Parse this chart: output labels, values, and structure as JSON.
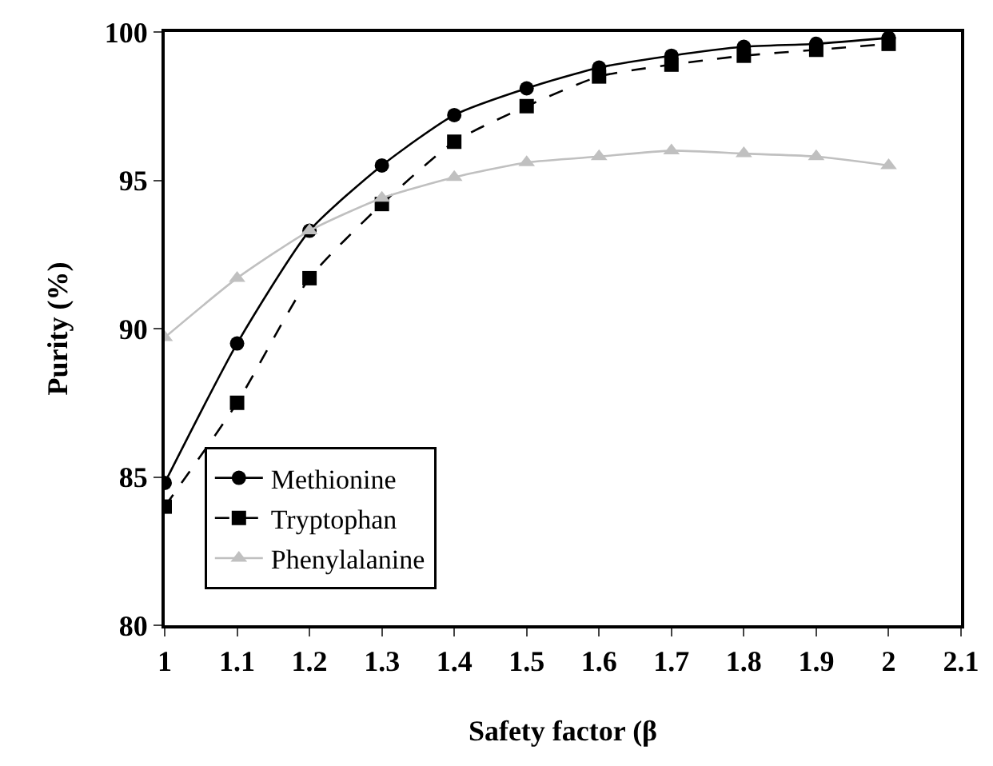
{
  "chart_data": {
    "type": "line",
    "xlabel": "Safety factor (β",
    "ylabel": "Purity (%)",
    "x": [
      1,
      1.1,
      1.2,
      1.3,
      1.4,
      1.5,
      1.6,
      1.7,
      1.8,
      1.9,
      2
    ],
    "series": [
      {
        "name": "Methionine",
        "color": "#000000",
        "marker": "circle",
        "line_style": "solid",
        "values": [
          84.8,
          89.5,
          93.3,
          95.5,
          97.2,
          98.1,
          98.8,
          99.2,
          99.5,
          99.6,
          99.8
        ]
      },
      {
        "name": "Tryptophan",
        "color": "#000000",
        "marker": "square",
        "line_style": "dashed",
        "values": [
          84.0,
          87.5,
          91.7,
          94.2,
          96.3,
          97.5,
          98.5,
          98.9,
          99.2,
          99.4,
          99.6
        ]
      },
      {
        "name": "Phenylalanine",
        "color": "#c0c0c0",
        "marker": "triangle",
        "line_style": "solid",
        "values": [
          89.7,
          91.7,
          93.3,
          94.4,
          95.1,
          95.6,
          95.8,
          96.0,
          95.9,
          95.8,
          95.5
        ]
      }
    ],
    "xlim": [
      1,
      2.1
    ],
    "xticks": [
      1,
      1.1,
      1.2,
      1.3,
      1.4,
      1.5,
      1.6,
      1.7,
      1.8,
      1.9,
      2,
      2.1
    ],
    "ylim": [
      80,
      100
    ],
    "yticks": [
      80,
      85,
      90,
      95,
      100
    ],
    "grid": false,
    "legend": "bottom left"
  }
}
